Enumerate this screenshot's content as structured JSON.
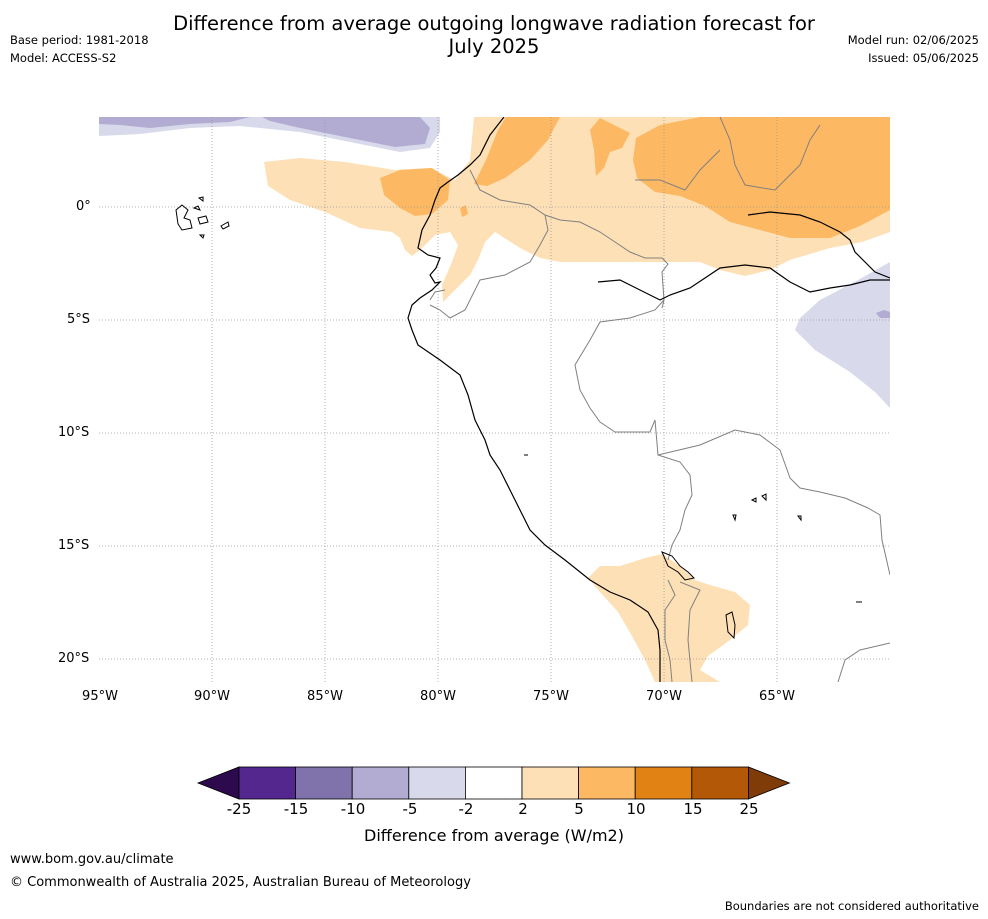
{
  "title": {
    "line1": "Difference from average outgoing longwave radiation forecast for",
    "line2": "July 2025"
  },
  "meta": {
    "base_period": "Base period: 1981-2018",
    "model": "Model: ACCESS-S2",
    "model_run": "Model run: 02/06/2025",
    "issued": "Issued: 05/06/2025"
  },
  "map": {
    "lat_labels": [
      "0°",
      "5°S",
      "10°S",
      "15°S",
      "20°S"
    ],
    "lon_labels": [
      "95°W",
      "90°W",
      "85°W",
      "80°W",
      "75°W",
      "70°W",
      "65°W"
    ],
    "gridlines": true
  },
  "colorbar": {
    "label": "Difference from average (W/m2)",
    "ticks": [
      "-25",
      "-15",
      "-10",
      "-5",
      "-2",
      "2",
      "5",
      "10",
      "15",
      "25"
    ],
    "colors": [
      "#2d0a4e",
      "#54278f",
      "#8073ac",
      "#b2abd2",
      "#d8daeb",
      "#ffffff",
      "#fee0b6",
      "#fdb863",
      "#e08214",
      "#b35806",
      "#7f3b08"
    ]
  },
  "footer": {
    "url": "www.bom.gov.au/climate",
    "copyright": "© Commonwealth of Australia 2025, Australian Bureau of Meteorology",
    "disclaimer": "Boundaries are not considered authoritative"
  }
}
